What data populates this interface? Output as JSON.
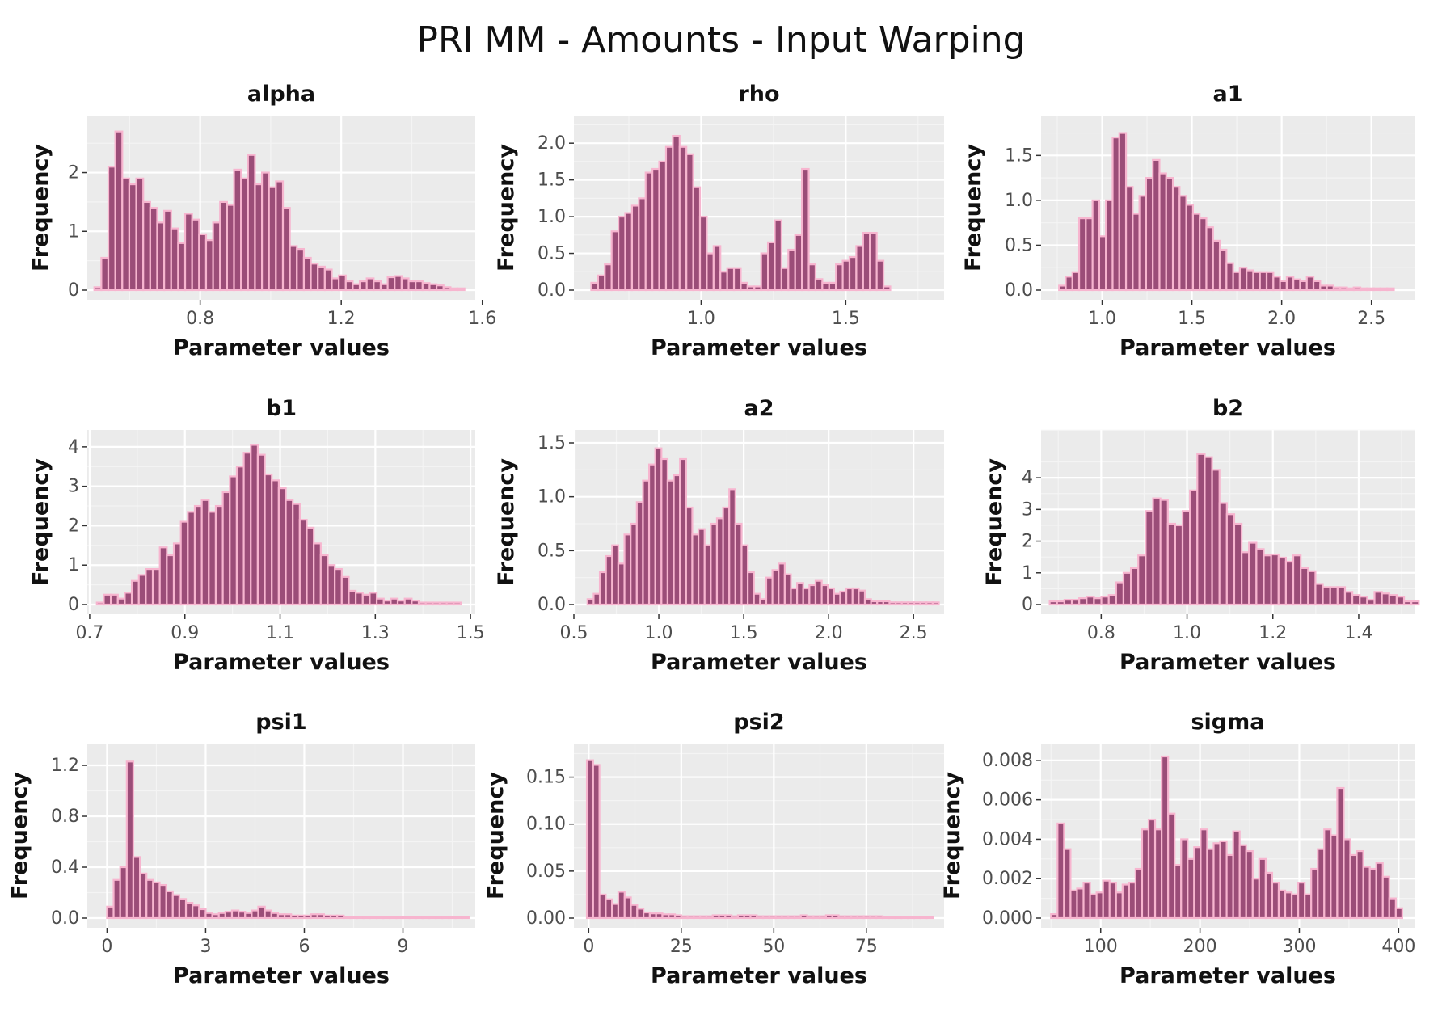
{
  "chart_title": "PRI MM - Amounts - Input Warping",
  "chart_data": [
    {
      "type": "histogram",
      "title": "alpha",
      "xlabel": "Parameter values",
      "ylabel": "Frequency",
      "xlim": [
        0.48,
        1.58
      ],
      "ylim": [
        0,
        2.75
      ],
      "xticks": [
        0.8,
        1.2,
        1.6
      ],
      "xtick_labels": [
        "0.8",
        "1.2",
        "1.6"
      ],
      "yticks": [
        0,
        1,
        2
      ],
      "ytick_labels": [
        "0",
        "1",
        "2"
      ],
      "bins": {
        "start": 0.5,
        "width": 0.0198,
        "values": [
          0.05,
          0.55,
          2.1,
          2.7,
          1.9,
          1.8,
          1.9,
          1.5,
          1.4,
          1.15,
          1.35,
          1.05,
          0.8,
          1.3,
          1.2,
          0.95,
          0.85,
          1.15,
          1.5,
          1.45,
          2.05,
          1.9,
          2.3,
          1.8,
          2.0,
          1.75,
          1.85,
          1.4,
          0.75,
          0.7,
          0.55,
          0.45,
          0.4,
          0.35,
          0.2,
          0.25,
          0.15,
          0.1,
          0.15,
          0.2,
          0.15,
          0.1,
          0.22,
          0.24,
          0.2,
          0.15,
          0.15,
          0.12,
          0.1,
          0.08,
          0.05,
          0.03,
          0.03
        ]
      }
    },
    {
      "type": "histogram",
      "title": "rho",
      "xlabel": "Parameter values",
      "ylabel": "Frequency",
      "xlim": [
        0.56,
        1.84
      ],
      "ylim": [
        0,
        2.2
      ],
      "xticks": [
        1.0,
        1.5
      ],
      "xtick_labels": [
        "1.0",
        "1.5"
      ],
      "yticks": [
        0,
        0.5,
        1.0,
        1.5,
        2.0
      ],
      "ytick_labels": [
        "0.0",
        "0.5",
        "1.0",
        "1.5",
        "2.0"
      ],
      "bins": {
        "start": 0.62,
        "width": 0.0235,
        "values": [
          0.1,
          0.2,
          0.35,
          0.8,
          1.0,
          1.05,
          1.15,
          1.25,
          1.6,
          1.65,
          1.75,
          1.95,
          2.1,
          1.95,
          1.85,
          1.4,
          1.0,
          0.5,
          0.6,
          0.25,
          0.3,
          0.3,
          0.1,
          0.05,
          0.05,
          0.5,
          0.65,
          0.95,
          0.3,
          0.55,
          0.75,
          1.65,
          0.35,
          0.15,
          0.1,
          0.1,
          0.35,
          0.4,
          0.45,
          0.6,
          0.78,
          0.78,
          0.4,
          0.05
        ]
      }
    },
    {
      "type": "histogram",
      "title": "a1",
      "xlabel": "Parameter values",
      "ylabel": "Frequency",
      "xlim": [
        0.66,
        2.74
      ],
      "ylim": [
        0,
        1.8
      ],
      "xticks": [
        1.0,
        1.5,
        2.0,
        2.5
      ],
      "xtick_labels": [
        "1.0",
        "1.5",
        "2.0",
        "2.5"
      ],
      "yticks": [
        0,
        0.5,
        1.0,
        1.5
      ],
      "ytick_labels": [
        "0.0",
        "0.5",
        "1.0",
        "1.5"
      ],
      "bins": {
        "start": 0.76,
        "width": 0.0373,
        "values": [
          0.05,
          0.15,
          0.2,
          0.8,
          0.8,
          1.0,
          0.6,
          1.0,
          1.7,
          1.75,
          1.15,
          0.85,
          1.05,
          1.25,
          1.45,
          1.3,
          1.25,
          1.15,
          1.05,
          0.95,
          0.85,
          0.8,
          0.7,
          0.55,
          0.45,
          0.3,
          0.2,
          0.25,
          0.22,
          0.2,
          0.2,
          0.2,
          0.15,
          0.1,
          0.15,
          0.12,
          0.1,
          0.15,
          0.1,
          0.05,
          0.05,
          0.03,
          0.03,
          0.02,
          0.03,
          0.02,
          0.02,
          0.02,
          0.02,
          0.02
        ]
      }
    },
    {
      "type": "histogram",
      "title": "b1",
      "xlabel": "Parameter values",
      "ylabel": "Frequency",
      "xlim": [
        0.695,
        1.51
      ],
      "ylim": [
        0,
        4.1
      ],
      "xticks": [
        0.7,
        0.9,
        1.1,
        1.3,
        1.5
      ],
      "xtick_labels": [
        "0.7",
        "0.9",
        "1.1",
        "1.3",
        "1.5"
      ],
      "yticks": [
        0,
        1,
        2,
        3,
        4
      ],
      "ytick_labels": [
        "0",
        "1",
        "2",
        "3",
        "4"
      ],
      "bins": {
        "start": 0.715,
        "width": 0.0147,
        "values": [
          0.05,
          0.25,
          0.25,
          0.15,
          0.3,
          0.6,
          0.75,
          0.9,
          0.9,
          1.45,
          1.25,
          1.55,
          2.1,
          2.35,
          2.5,
          2.65,
          2.35,
          2.5,
          2.85,
          3.25,
          3.5,
          3.85,
          4.05,
          3.8,
          3.3,
          3.15,
          2.95,
          2.65,
          2.55,
          2.15,
          1.95,
          1.55,
          1.25,
          1.0,
          0.9,
          0.7,
          0.35,
          0.3,
          0.25,
          0.3,
          0.15,
          0.1,
          0.15,
          0.1,
          0.15,
          0.1,
          0.05,
          0.05,
          0.05,
          0.05,
          0.05,
          0.05
        ]
      }
    },
    {
      "type": "histogram",
      "title": "a2",
      "xlabel": "Parameter values",
      "ylabel": "Frequency",
      "xlim": [
        0.5,
        2.68
      ],
      "ylim": [
        0,
        1.5
      ],
      "xticks": [
        0.5,
        1.0,
        1.5,
        2.0,
        2.5
      ],
      "xtick_labels": [
        "0.5",
        "1.0",
        "1.5",
        "2.0",
        "2.5"
      ],
      "yticks": [
        0,
        0.5,
        1.0,
        1.5
      ],
      "ytick_labels": [
        "0.0",
        "0.5",
        "1.0",
        "1.5"
      ],
      "bins": {
        "start": 0.58,
        "width": 0.0363,
        "values": [
          0.05,
          0.1,
          0.3,
          0.45,
          0.55,
          0.38,
          0.65,
          0.75,
          0.95,
          1.15,
          1.3,
          1.45,
          1.35,
          1.15,
          1.2,
          1.35,
          0.9,
          0.65,
          0.7,
          0.55,
          0.75,
          0.8,
          0.9,
          1.07,
          0.75,
          0.55,
          0.3,
          0.1,
          0.05,
          0.25,
          0.32,
          0.38,
          0.28,
          0.15,
          0.2,
          0.15,
          0.18,
          0.22,
          0.18,
          0.15,
          0.1,
          0.12,
          0.15,
          0.15,
          0.13,
          0.05,
          0.03,
          0.03,
          0.03,
          0.02,
          0.02,
          0.02,
          0.02,
          0.02,
          0.02,
          0.02,
          0.02
        ]
      }
    },
    {
      "type": "histogram",
      "title": "b2",
      "xlabel": "Parameter values",
      "ylabel": "Frequency",
      "xlim": [
        0.66,
        1.53
      ],
      "ylim": [
        0,
        5.1
      ],
      "xticks": [
        0.8,
        1.0,
        1.2,
        1.4
      ],
      "xtick_labels": [
        "0.8",
        "1.0",
        "1.2",
        "1.4"
      ],
      "yticks": [
        0,
        1,
        2,
        3,
        4
      ],
      "ytick_labels": [
        "0",
        "1",
        "2",
        "3",
        "4"
      ],
      "bins": {
        "start": 0.68,
        "width": 0.0172,
        "values": [
          0.1,
          0.1,
          0.15,
          0.15,
          0.2,
          0.25,
          0.2,
          0.25,
          0.3,
          0.7,
          1.0,
          1.15,
          1.55,
          2.95,
          3.35,
          3.3,
          2.55,
          2.5,
          2.95,
          3.6,
          4.75,
          4.65,
          4.25,
          3.2,
          2.85,
          2.55,
          1.65,
          1.95,
          1.75,
          1.55,
          1.58,
          1.48,
          1.35,
          1.55,
          1.15,
          1.05,
          0.65,
          0.55,
          0.55,
          0.55,
          0.4,
          0.3,
          0.25,
          0.15,
          0.4,
          0.35,
          0.3,
          0.25,
          0.1,
          0.1
        ]
      }
    },
    {
      "type": "histogram",
      "title": "psi1",
      "xlabel": "Parameter values",
      "ylabel": "Frequency",
      "xlim": [
        -0.6,
        11.2
      ],
      "ylim": [
        0,
        1.27
      ],
      "xticks": [
        0,
        3,
        6,
        9
      ],
      "xtick_labels": [
        "0",
        "3",
        "6",
        "9"
      ],
      "yticks": [
        0,
        0.4,
        0.8,
        1.2
      ],
      "ytick_labels": [
        "0.0",
        "0.4",
        "0.8",
        "1.2"
      ],
      "bins": {
        "start": 0.0,
        "width": 0.2,
        "values": [
          0.09,
          0.3,
          0.4,
          1.23,
          0.48,
          0.35,
          0.3,
          0.28,
          0.26,
          0.21,
          0.18,
          0.15,
          0.12,
          0.1,
          0.07,
          0.04,
          0.03,
          0.04,
          0.05,
          0.06,
          0.05,
          0.04,
          0.06,
          0.09,
          0.06,
          0.04,
          0.03,
          0.03,
          0.02,
          0.02,
          0.02,
          0.03,
          0.03,
          0.02,
          0.02,
          0.02,
          0.01,
          0.01,
          0.01,
          0.01,
          0.01,
          0.01,
          0.01,
          0.01,
          0.01,
          0.01,
          0.01,
          0.01,
          0.01,
          0.01,
          0.01,
          0.01,
          0.01,
          0.01,
          0.01
        ]
      }
    },
    {
      "type": "histogram",
      "title": "psi2",
      "xlabel": "Parameter values",
      "ylabel": "Frequency",
      "xlim": [
        -4,
        96
      ],
      "ylim": [
        0,
        0.172
      ],
      "xticks": [
        0,
        25,
        50,
        75
      ],
      "xtick_labels": [
        "0",
        "25",
        "50",
        "75"
      ],
      "yticks": [
        0,
        0.05,
        0.1,
        0.15
      ],
      "ytick_labels": [
        "0.00",
        "0.05",
        "0.10",
        "0.15"
      ],
      "bins": {
        "start": -0.5,
        "width": 1.7,
        "values": [
          0.168,
          0.163,
          0.025,
          0.02,
          0.015,
          0.028,
          0.022,
          0.014,
          0.01,
          0.006,
          0.005,
          0.005,
          0.004,
          0.004,
          0.003,
          0.002,
          0.002,
          0.002,
          0.002,
          0.002,
          0.003,
          0.003,
          0.003,
          0.002,
          0.003,
          0.003,
          0.003,
          0.002,
          0.002,
          0.002,
          0.002,
          0.002,
          0.002,
          0.002,
          0.003,
          0.002,
          0.002,
          0.002,
          0.003,
          0.003,
          0.002,
          0.002,
          0.002,
          0.002,
          0.002,
          0.002,
          0.002,
          0.001,
          0.001,
          0.001,
          0.001,
          0.001,
          0.001,
          0.001,
          0.001
        ]
      }
    },
    {
      "type": "histogram",
      "title": "sigma",
      "xlabel": "Parameter values",
      "ylabel": "Frequency",
      "xlim": [
        40,
        416
      ],
      "ylim": [
        0,
        0.0082
      ],
      "xticks": [
        100,
        200,
        300,
        400
      ],
      "xtick_labels": [
        "100",
        "200",
        "300",
        "400"
      ],
      "yticks": [
        0,
        0.002,
        0.004,
        0.006,
        0.008
      ],
      "ytick_labels": [
        "0.000",
        "0.002",
        "0.004",
        "0.006",
        "0.008"
      ],
      "bins": {
        "start": 50,
        "width": 6.55,
        "values": [
          0.0002,
          0.0048,
          0.0035,
          0.0014,
          0.0015,
          0.0018,
          0.0012,
          0.0013,
          0.0019,
          0.0018,
          0.0013,
          0.0017,
          0.0018,
          0.0025,
          0.0045,
          0.005,
          0.0045,
          0.0082,
          0.0053,
          0.0027,
          0.004,
          0.003,
          0.0036,
          0.0045,
          0.0035,
          0.0038,
          0.0039,
          0.0032,
          0.0044,
          0.0037,
          0.0034,
          0.002,
          0.003,
          0.0023,
          0.0018,
          0.0014,
          0.0013,
          0.0012,
          0.0018,
          0.0012,
          0.0025,
          0.0035,
          0.0045,
          0.0042,
          0.0066,
          0.004,
          0.0032,
          0.0034,
          0.0026,
          0.0025,
          0.0028,
          0.0021,
          0.001,
          0.0005
        ]
      }
    }
  ]
}
